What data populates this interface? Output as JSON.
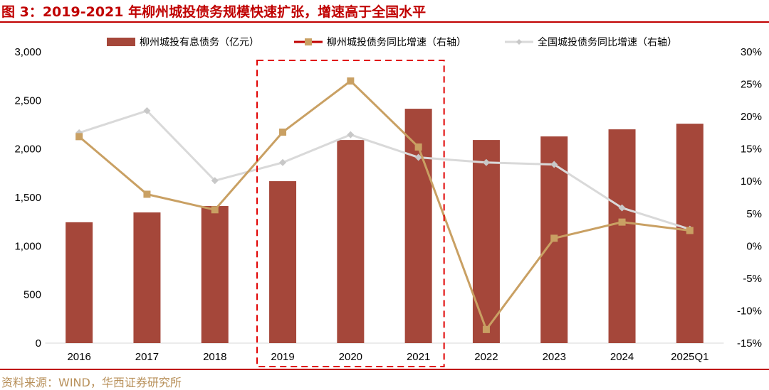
{
  "title": "图 3：2019-2021 年柳州城投债务规模快速扩张，增速高于全国水平",
  "source": "资料来源：WIND，华西证券研究所",
  "chart_data": {
    "type": "bar+line",
    "categories": [
      "2016",
      "2017",
      "2018",
      "2019",
      "2020",
      "2021",
      "2022",
      "2023",
      "2024",
      "2025Q1"
    ],
    "left_axis": {
      "range": [
        0,
        3000
      ],
      "ticks": [
        "0",
        "500",
        "1,000",
        "1,500",
        "2,000",
        "2,500",
        "3,000"
      ]
    },
    "right_axis": {
      "range": [
        -15,
        30
      ],
      "ticks": [
        "-15%",
        "-10%",
        "-5%",
        "0%",
        "5%",
        "10%",
        "15%",
        "20%",
        "25%",
        "30%"
      ]
    },
    "series": [
      {
        "name": "柳州城投有息债务（亿元）",
        "type": "bar",
        "axis": "left",
        "color": "#a5473a",
        "values": [
          1245,
          1346,
          1412,
          1668,
          2092,
          2414,
          2092,
          2129,
          2202,
          2260
        ]
      },
      {
        "name": "柳州城投债务同比增速（右轴）",
        "type": "line",
        "axis": "right",
        "color": "#c9a063",
        "marker": "square",
        "values": [
          16.9,
          8.0,
          5.6,
          17.6,
          25.5,
          15.3,
          -12.9,
          1.2,
          3.7,
          2.4
        ]
      },
      {
        "name": "全国城投债务同比增速（右轴）",
        "type": "line",
        "axis": "right",
        "color": "#d9d9d9",
        "marker": "diamond",
        "values": [
          17.5,
          20.9,
          10.1,
          12.9,
          17.2,
          13.7,
          12.9,
          12.6,
          5.9,
          2.6
        ]
      }
    ],
    "highlight": {
      "from": "2019",
      "to": "2021",
      "style": "red dashed box"
    },
    "grid": false,
    "legend": "top"
  }
}
